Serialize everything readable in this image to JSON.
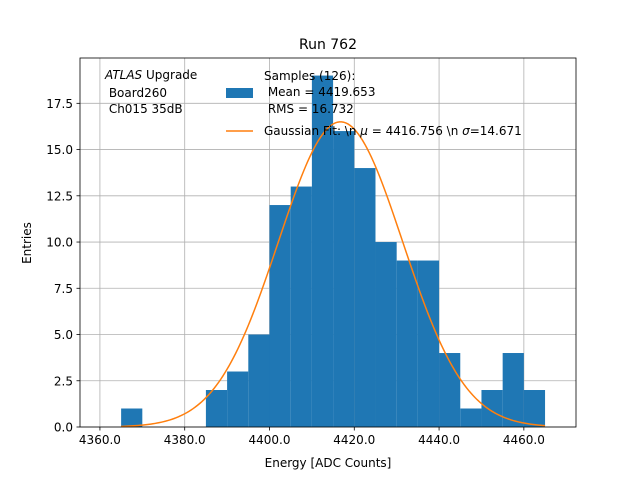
{
  "chart_data": {
    "type": "bar",
    "title": "Run 762",
    "xlabel": "Energy [ADC Counts]",
    "ylabel": "Entries",
    "xlim": [
      4355.3,
      4472.3
    ],
    "ylim": [
      0,
      19.95
    ],
    "grid": true,
    "x_ticks": [
      4360,
      4380,
      4400,
      4420,
      4440,
      4460
    ],
    "x_tick_labels": [
      "4360.0",
      "4380.0",
      "4400.0",
      "4420.0",
      "4440.0",
      "4460.0"
    ],
    "y_ticks": [
      0,
      2.5,
      5,
      7.5,
      10,
      12.5,
      15,
      17.5
    ],
    "y_tick_labels": [
      "0.0",
      "2.5",
      "5.0",
      "7.5",
      "10.0",
      "12.5",
      "15.0",
      "17.5"
    ],
    "bin_edges": [
      4365,
      4370,
      4375,
      4380,
      4385,
      4390,
      4395,
      4400,
      4405,
      4410,
      4415,
      4420,
      4425,
      4430,
      4435,
      4440,
      4445,
      4450,
      4455,
      4460,
      4465
    ],
    "counts": [
      1,
      0,
      0,
      0,
      2,
      3,
      5,
      12,
      13,
      19,
      16,
      14,
      10,
      9,
      9,
      4,
      1,
      2,
      4,
      2
    ],
    "hist_color": "#1f77b4",
    "fit": {
      "mu": 4416.756,
      "sigma": 14.671,
      "amplitude": 16.5,
      "x_range": [
        4365,
        4465
      ],
      "color": "#ff7f0e"
    },
    "annotation": {
      "line1_italic": "ATLAS",
      "line1_rest": " Upgrade",
      "line2": " Board260",
      "line3": " Ch015 35dB"
    },
    "legend": {
      "placement": "top-right",
      "hist_label_lines": [
        "Samples (126):",
        " Mean = 4419.653",
        " RMS = 16.732"
      ],
      "fit_label_prefix": "Gaussian Fit: \\n ",
      "fit_label_mu_sym": "μ",
      "fit_label_mid": " = 4416.756 \\n ",
      "fit_label_sigma_sym": "σ",
      "fit_label_end": "=14.671"
    }
  }
}
